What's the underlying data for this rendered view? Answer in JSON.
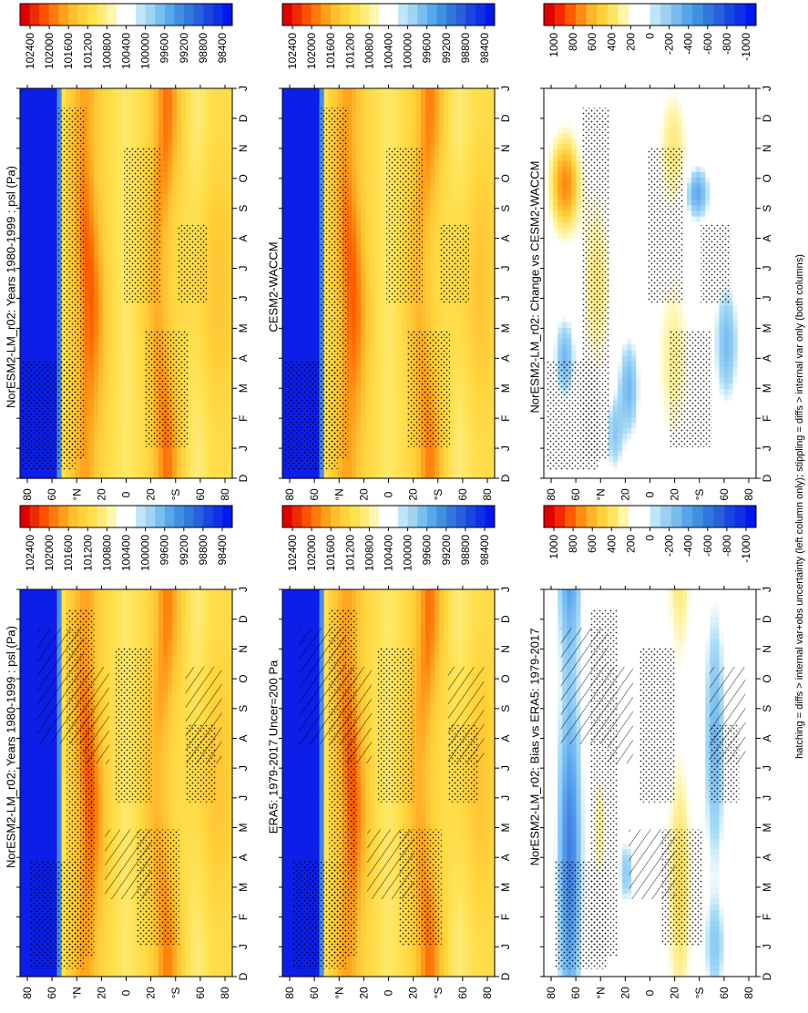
{
  "figure": {
    "footnote": "hatching = diffs > internal var+obs uncertainty (left column only); stippling = diffs > internal var only (both columns)"
  },
  "colorbars": {
    "abs": {
      "labels": [
        "102400",
        "102000",
        "101600",
        "101200",
        "100800",
        "100400",
        "100000",
        "99600",
        "99200",
        "98800",
        "98400"
      ],
      "colors": [
        "#dc0000",
        "#ee2a00",
        "#ff5000",
        "#ff7a0a",
        "#ff9f1a",
        "#ffbe2e",
        "#ffd23c",
        "#ffe04d",
        "#ffec78",
        "#fff6b0",
        "#ffffff",
        "#ffffff",
        "#c0e4f8",
        "#a0d4f2",
        "#78bff0",
        "#58a8ec",
        "#4090e0",
        "#3078dc",
        "#2860dc",
        "#1a46e0",
        "#1030e8",
        "#0018f0"
      ]
    },
    "diff": {
      "labels": [
        "1000",
        "800",
        "600",
        "400",
        "200",
        "0",
        "-200",
        "-400",
        "-600",
        "-800",
        "-1000"
      ],
      "colors": [
        "#e00000",
        "#f42800",
        "#ff5a00",
        "#ff8c14",
        "#ffb42a",
        "#ffd23c",
        "#ffe464",
        "#fff4a8",
        "#ffffff",
        "#ffffff",
        "#c0e4f8",
        "#9ccff4",
        "#78bcf0",
        "#58a4ea",
        "#4090e0",
        "#3078dc",
        "#2860dc",
        "#1a46e0",
        "#1030e8",
        "#0018f0"
      ]
    }
  },
  "axes": {
    "month_ticks": [
      "D",
      "J",
      "F",
      "M",
      "A",
      "M",
      "J",
      "J",
      "A",
      "S",
      "O",
      "N",
      "D",
      "J"
    ],
    "lat_ticks": [
      "80",
      "60",
      "°N",
      "20",
      "0",
      "20",
      "°S",
      "60",
      "80"
    ]
  },
  "chart_data": [
    {
      "type": "heatmap",
      "title": "NorESM2-LM_r02: Years 1980-1999 : psl (Pa)",
      "colorbar": "abs",
      "x": "month",
      "y": "latitude",
      "hatching": true,
      "stippling": true
    },
    {
      "type": "heatmap",
      "title": "NorESM2-LM_r02: Years 1980-1999 : psl (Pa)",
      "colorbar": "abs",
      "x": "month",
      "y": "latitude",
      "stippling": true
    },
    {
      "type": "heatmap",
      "title": "ERA5: 1979-2017 Uncer=200 Pa",
      "colorbar": "abs",
      "x": "month",
      "y": "latitude",
      "hatching": true,
      "stippling": true
    },
    {
      "type": "heatmap",
      "title": "CESM2-WACCM",
      "colorbar": "abs",
      "x": "month",
      "y": "latitude",
      "stippling": true
    },
    {
      "type": "heatmap",
      "title": "NorESM2-LM_r02: Bias vs ERA5: 1979-2017",
      "colorbar": "diff",
      "x": "month",
      "y": "latitude",
      "hatching": true,
      "stippling": true
    },
    {
      "type": "heatmap",
      "title": "NorESM2-LM_r02: Change vs CESM2-WACCM",
      "colorbar": "diff",
      "x": "month",
      "y": "latitude",
      "stippling": true
    }
  ]
}
